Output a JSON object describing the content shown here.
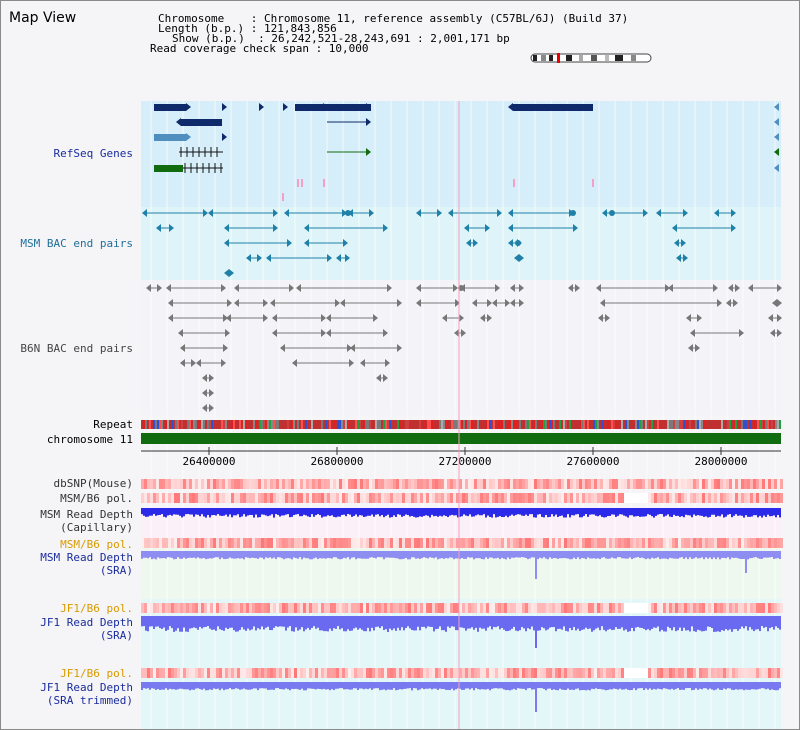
{
  "header": {
    "view_title": "Map View",
    "chromosome_line": "Chromosome    : Chromosome 11, reference assembly (C57BL/6J) (Build 37)",
    "length_line": "Length (b.p.) : 121,843,856",
    "show_line": "Show (b.p.)  : 26,242,521-28,243,691 : 2,001,171 bp",
    "coverage_line": "Read coverage check span : 10,000"
  },
  "tracks": {
    "refseq": "RefSeq Genes",
    "msm_bac": "MSM BAC end pairs",
    "b6n_bac": "B6N BAC end pairs",
    "repeat": "Repeat",
    "chromosome": "chromosome 11",
    "dbsnp": "dbSNP(Mouse)",
    "msm_b6_pol_1": "MSM/B6 pol.",
    "msm_depth_cap_1": "MSM Read Depth",
    "msm_depth_cap_2": "(Capillary)",
    "msm_b6_pol_2": "MSM/B6 pol.",
    "msm_depth_sra_1": "MSM Read Depth",
    "msm_depth_sra_2": "(SRA)",
    "jf1_b6_pol_1": "JF1/B6 pol.",
    "jf1_depth_sra_1": "JF1 Read Depth",
    "jf1_depth_sra_2": "(SRA)",
    "jf1_b6_pol_2": "JF1/B6 pol.",
    "jf1_depth_trim_1": "JF1 Read Depth",
    "jf1_depth_trim_2": "(SRA trimmed)"
  },
  "axis": {
    "ticks": [
      "26400000",
      "26800000",
      "27200000",
      "27600000",
      "28000000"
    ]
  },
  "colors": {
    "label_blue": "#1a2c9c",
    "label_orange": "#d99a00",
    "refseq_bg": "#d6eefa",
    "msm_bg": "#dff4f8",
    "b6n_bg": "#f4f3f8",
    "chrom_green": "#116b0f",
    "gene_dark": "#0e2a6a",
    "msm_teal": "#1f80a8",
    "b6n_grey": "#777777",
    "depth_blue": "#5a5af0"
  }
}
